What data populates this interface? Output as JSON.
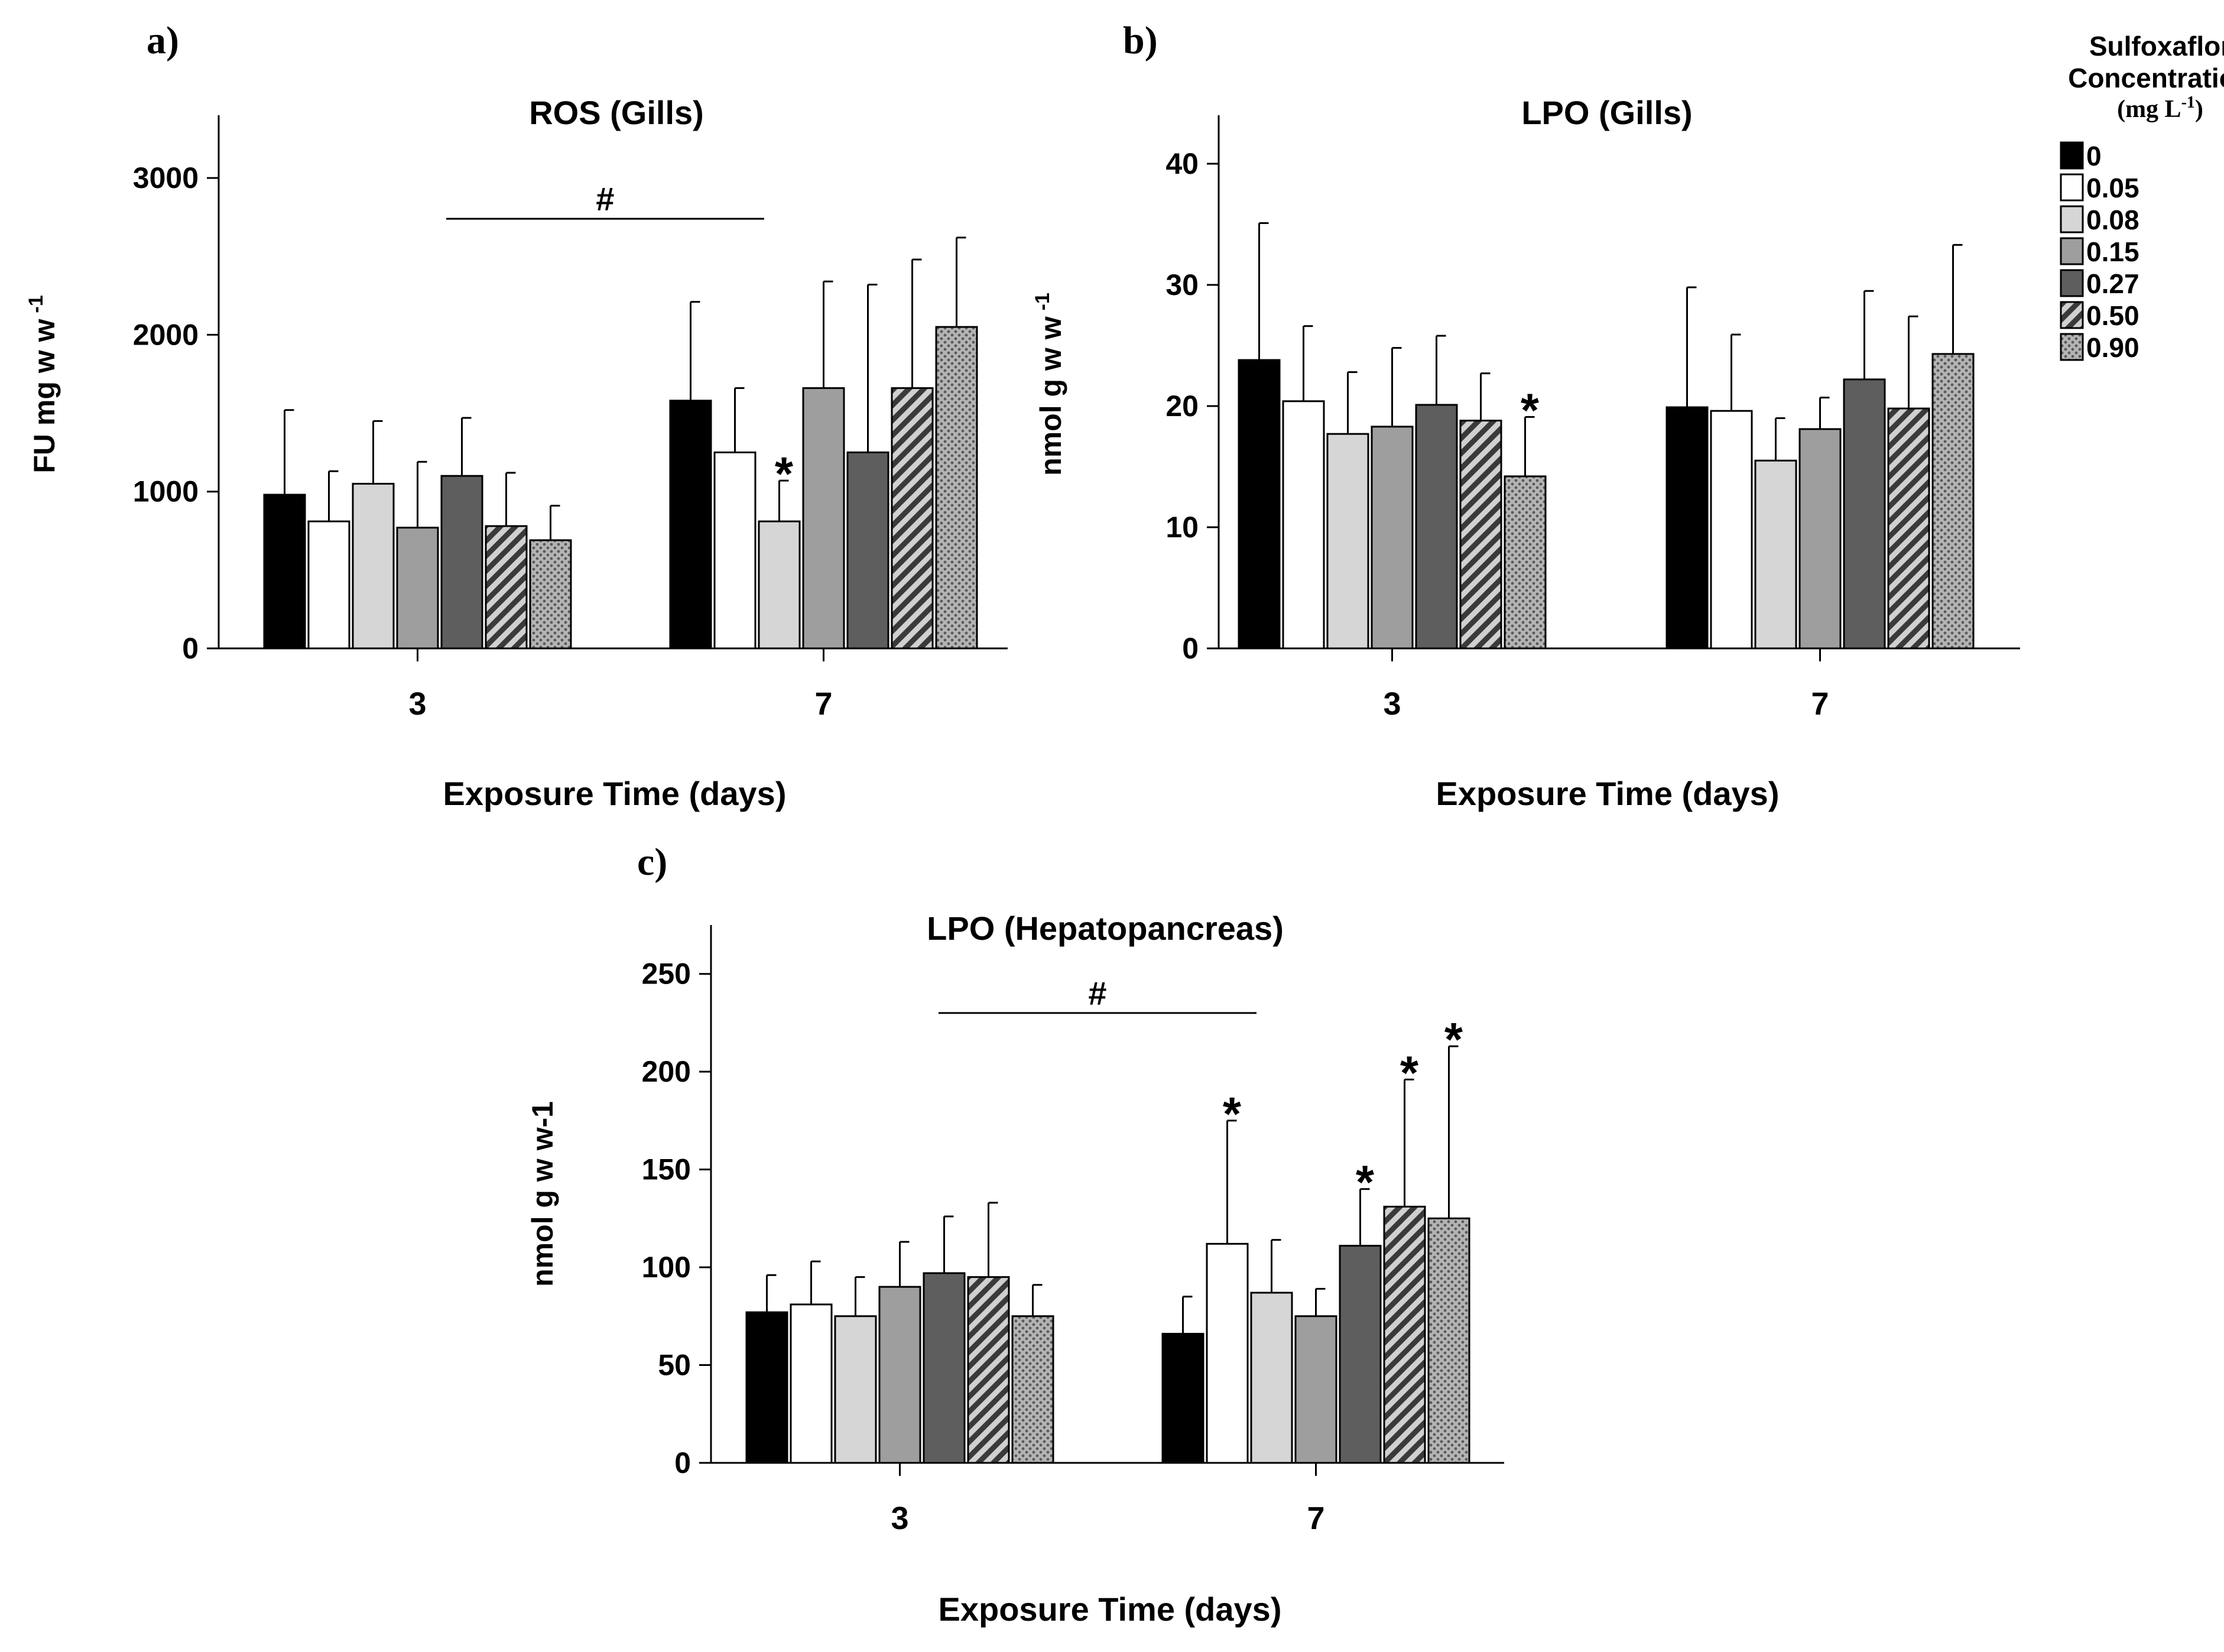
{
  "legend": {
    "title_line1": "Sulfoxaflor",
    "title_line2": "Concentration",
    "unit_main": "(mg L",
    "unit_sup": "-1",
    "unit_close": ")",
    "placement": "right",
    "entries": [
      {
        "label": "0",
        "fill": "#000000",
        "pattern": "solid"
      },
      {
        "label": "0.05",
        "fill": "#ffffff",
        "pattern": "solid"
      },
      {
        "label": "0.08",
        "fill": "#d6d6d6",
        "pattern": "solid"
      },
      {
        "label": "0.15",
        "fill": "#9e9e9e",
        "pattern": "solid"
      },
      {
        "label": "0.27",
        "fill": "#5e5e5e",
        "pattern": "solid"
      },
      {
        "label": "0.50",
        "fill": "#8c8c8c",
        "pattern": "diagonal"
      },
      {
        "label": "0.90",
        "fill": "#a8a8a8",
        "pattern": "dots"
      }
    ]
  },
  "chart_data": [
    {
      "type": "bar",
      "panel_label": "a)",
      "title": "ROS (Gills)",
      "xlabel": "Exposure Time (days)",
      "ylabel": "FU mg w w",
      "ylabel_sup": "-1",
      "categories": [
        "3",
        "7"
      ],
      "ylim": [
        0,
        3400
      ],
      "yticks": [
        0,
        1000,
        2000,
        3000
      ],
      "grid": false,
      "series": [
        {
          "name": "0",
          "values": [
            980,
            1580
          ],
          "errors": [
            540,
            630
          ]
        },
        {
          "name": "0.05",
          "values": [
            810,
            1250
          ],
          "errors": [
            320,
            410
          ]
        },
        {
          "name": "0.08",
          "values": [
            1050,
            810
          ],
          "errors": [
            400,
            260
          ]
        },
        {
          "name": "0.15",
          "values": [
            770,
            1660
          ],
          "errors": [
            420,
            680
          ]
        },
        {
          "name": "0.27",
          "values": [
            1100,
            1250
          ],
          "errors": [
            370,
            1070
          ]
        },
        {
          "name": "0.50",
          "values": [
            780,
            1660
          ],
          "errors": [
            340,
            820
          ]
        },
        {
          "name": "0.90",
          "values": [
            690,
            2050
          ],
          "errors": [
            220,
            570
          ]
        }
      ],
      "significance": [
        {
          "category": "7",
          "series": "0.08",
          "mark": "*"
        }
      ],
      "comparison_bar": {
        "text": "#",
        "y": 2740
      }
    },
    {
      "type": "bar",
      "panel_label": "b)",
      "title": "LPO (Gills)",
      "xlabel": "Exposure Time (days)",
      "ylabel": "nmol g w w",
      "ylabel_sup": "-1",
      "categories": [
        "3",
        "7"
      ],
      "ylim": [
        0,
        44
      ],
      "yticks": [
        0,
        10,
        20,
        30,
        40
      ],
      "grid": false,
      "series": [
        {
          "name": "0",
          "values": [
            23.8,
            19.9
          ],
          "errors": [
            11.3,
            9.9
          ]
        },
        {
          "name": "0.05",
          "values": [
            20.4,
            19.6
          ],
          "errors": [
            6.2,
            6.3
          ]
        },
        {
          "name": "0.08",
          "values": [
            17.7,
            15.5
          ],
          "errors": [
            5.1,
            3.5
          ]
        },
        {
          "name": "0.15",
          "values": [
            18.3,
            18.1
          ],
          "errors": [
            6.5,
            2.6
          ]
        },
        {
          "name": "0.27",
          "values": [
            20.1,
            22.2
          ],
          "errors": [
            5.7,
            7.3
          ]
        },
        {
          "name": "0.50",
          "values": [
            18.8,
            19.8
          ],
          "errors": [
            3.9,
            7.6
          ]
        },
        {
          "name": "0.90",
          "values": [
            14.2,
            24.3
          ],
          "errors": [
            4.9,
            9.0
          ]
        }
      ],
      "significance": [
        {
          "category": "3",
          "series": "0.90",
          "mark": "*"
        }
      ]
    },
    {
      "type": "bar",
      "panel_label": "c)",
      "title": "LPO (Hepatopancreas)",
      "xlabel": "Exposure Time (days)",
      "ylabel": "nmol g w w-1",
      "ylabel_sup": "",
      "categories": [
        "3",
        "7"
      ],
      "ylim": [
        0,
        275
      ],
      "yticks": [
        0,
        50,
        100,
        150,
        200,
        250
      ],
      "grid": false,
      "series": [
        {
          "name": "0",
          "values": [
            77,
            66
          ],
          "errors": [
            19,
            19
          ]
        },
        {
          "name": "0.05",
          "values": [
            81,
            112
          ],
          "errors": [
            22,
            63
          ]
        },
        {
          "name": "0.08",
          "values": [
            75,
            87
          ],
          "errors": [
            20,
            27
          ]
        },
        {
          "name": "0.15",
          "values": [
            90,
            75
          ],
          "errors": [
            23,
            14
          ]
        },
        {
          "name": "0.27",
          "values": [
            97,
            111
          ],
          "errors": [
            29,
            29
          ]
        },
        {
          "name": "0.50",
          "values": [
            95,
            131
          ],
          "errors": [
            38,
            65
          ]
        },
        {
          "name": "0.90",
          "values": [
            75,
            125
          ],
          "errors": [
            16,
            88
          ]
        }
      ],
      "significance": [
        {
          "category": "7",
          "series": "0.05",
          "mark": "*"
        },
        {
          "category": "7",
          "series": "0.27",
          "mark": "*"
        },
        {
          "category": "7",
          "series": "0.50",
          "mark": "*"
        },
        {
          "category": "7",
          "series": "0.90",
          "mark": "*"
        }
      ],
      "comparison_bar": {
        "text": "#",
        "y": 230
      }
    }
  ]
}
